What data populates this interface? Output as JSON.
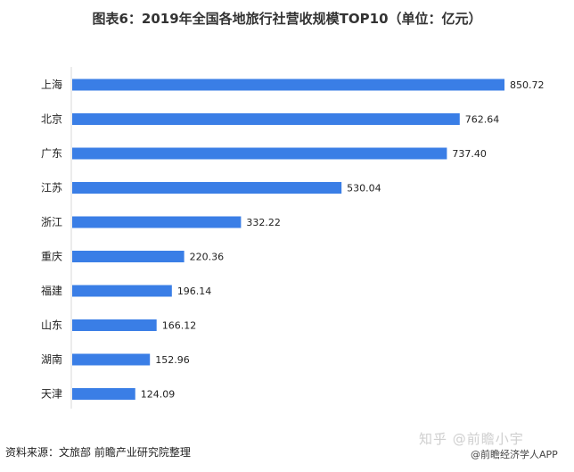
{
  "chart_data": {
    "type": "bar",
    "orientation": "horizontal",
    "title": "图表6：2019年全国各地旅行社营收规模TOP10（单位：亿元）",
    "categories": [
      "上海",
      "北京",
      "广东",
      "江苏",
      "浙江",
      "重庆",
      "福建",
      "山东",
      "湖南",
      "天津"
    ],
    "values": [
      850.72,
      762.64,
      737.4,
      530.04,
      332.22,
      220.36,
      196.14,
      166.12,
      152.96,
      124.09
    ],
    "value_labels": [
      "850.72",
      "762.64",
      "737.40",
      "530.04",
      "332.22",
      "220.36",
      "196.14",
      "166.12",
      "152.96",
      "124.09"
    ],
    "xlim": [
      0,
      850.72
    ],
    "bar_color": "#3a7ee6",
    "grid": false,
    "legend": "none"
  },
  "source_text": "资料来源：文旅部 前瞻产业研究院整理",
  "watermark_zhihu": "知乎 @前瞻小宇",
  "watermark_app": "@前瞻经济学人APP"
}
